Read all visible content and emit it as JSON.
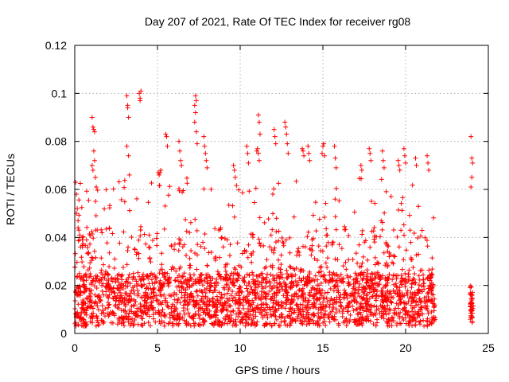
{
  "chart_data": {
    "type": "scatter",
    "title": "Day 207 of 2021, Rate Of TEC Index for receiver rg08",
    "xlabel": "GPS time / hours",
    "ylabel": "ROTI / TECUs",
    "xlim": [
      0,
      25
    ],
    "ylim": [
      0,
      0.12
    ],
    "xticks": [
      0,
      5,
      10,
      15,
      20,
      25
    ],
    "yticks": [
      0,
      0.02,
      0.04,
      0.06,
      0.08,
      0.1,
      0.12
    ],
    "xtick_labels": [
      "0",
      "5",
      "10",
      "15",
      "20",
      "25"
    ],
    "ytick_labels": [
      "0",
      "0.02",
      "0.04",
      "0.06",
      "0.08",
      "0.1",
      "0.12"
    ],
    "grid": true,
    "marker": "+",
    "color": "#ff0000",
    "series": [
      {
        "x": [
          0.05,
          0.1,
          0.15,
          0.2,
          0.25,
          0.3,
          0.35,
          0.1,
          0.2,
          0.3,
          1.05,
          1.1,
          1.15,
          1.2,
          1.05,
          1.15,
          1.1,
          1.2,
          1.25,
          1.3,
          3.15,
          3.2,
          3.25,
          3.2,
          3.15,
          3.25,
          3.3,
          3.9,
          3.95,
          4.0,
          3.95,
          5.05,
          5.1,
          5.15,
          5.2,
          5.5,
          5.55,
          5.6,
          6.3,
          6.35,
          6.4,
          6.45,
          7.25,
          7.3,
          7.35,
          7.3,
          7.25,
          7.35,
          7.4,
          7.8,
          7.85,
          7.9,
          7.95,
          8.0,
          9.6,
          9.65,
          9.7,
          10.4,
          10.45,
          10.5,
          11.0,
          11.05,
          11.1,
          11.15,
          11.2,
          11.1,
          11.15,
          12.05,
          12.1,
          12.15,
          12.7,
          12.75,
          12.8,
          12.85,
          12.9,
          13.75,
          13.8,
          13.85,
          14.1,
          14.15,
          14.2,
          14.95,
          15.0,
          15.05,
          15.1,
          15.7,
          15.75,
          15.8,
          17.3,
          17.35,
          17.8,
          17.85,
          17.9,
          18.6,
          18.65,
          18.7,
          19.55,
          19.6,
          19.65,
          19.9,
          19.95,
          20.0,
          20.6,
          20.65,
          21.3,
          21.35,
          21.4,
          23.95,
          24.0,
          24.05,
          24.0,
          23.95
        ],
        "y": [
          0.063,
          0.058,
          0.052,
          0.047,
          0.043,
          0.039,
          0.036,
          0.05,
          0.044,
          0.041,
          0.09,
          0.086,
          0.085,
          0.084,
          0.07,
          0.076,
          0.068,
          0.072,
          0.065,
          0.061,
          0.099,
          0.095,
          0.09,
          0.094,
          0.078,
          0.074,
          0.066,
          0.1,
          0.098,
          0.101,
          0.097,
          0.067,
          0.066,
          0.067,
          0.068,
          0.083,
          0.082,
          0.078,
          0.08,
          0.076,
          0.072,
          0.07,
          0.095,
          0.099,
          0.097,
          0.092,
          0.088,
          0.084,
          0.079,
          0.082,
          0.078,
          0.075,
          0.072,
          0.069,
          0.07,
          0.068,
          0.065,
          0.078,
          0.075,
          0.071,
          0.076,
          0.077,
          0.091,
          0.088,
          0.083,
          0.075,
          0.072,
          0.085,
          0.082,
          0.079,
          0.088,
          0.086,
          0.083,
          0.079,
          0.075,
          0.077,
          0.076,
          0.074,
          0.078,
          0.075,
          0.072,
          0.075,
          0.078,
          0.079,
          0.074,
          0.078,
          0.073,
          0.069,
          0.07,
          0.068,
          0.077,
          0.075,
          0.072,
          0.076,
          0.072,
          0.069,
          0.072,
          0.07,
          0.068,
          0.077,
          0.074,
          0.071,
          0.073,
          0.07,
          0.074,
          0.071,
          0.068,
          0.082,
          0.073,
          0.071,
          0.065,
          0.061
        ]
      }
    ]
  }
}
